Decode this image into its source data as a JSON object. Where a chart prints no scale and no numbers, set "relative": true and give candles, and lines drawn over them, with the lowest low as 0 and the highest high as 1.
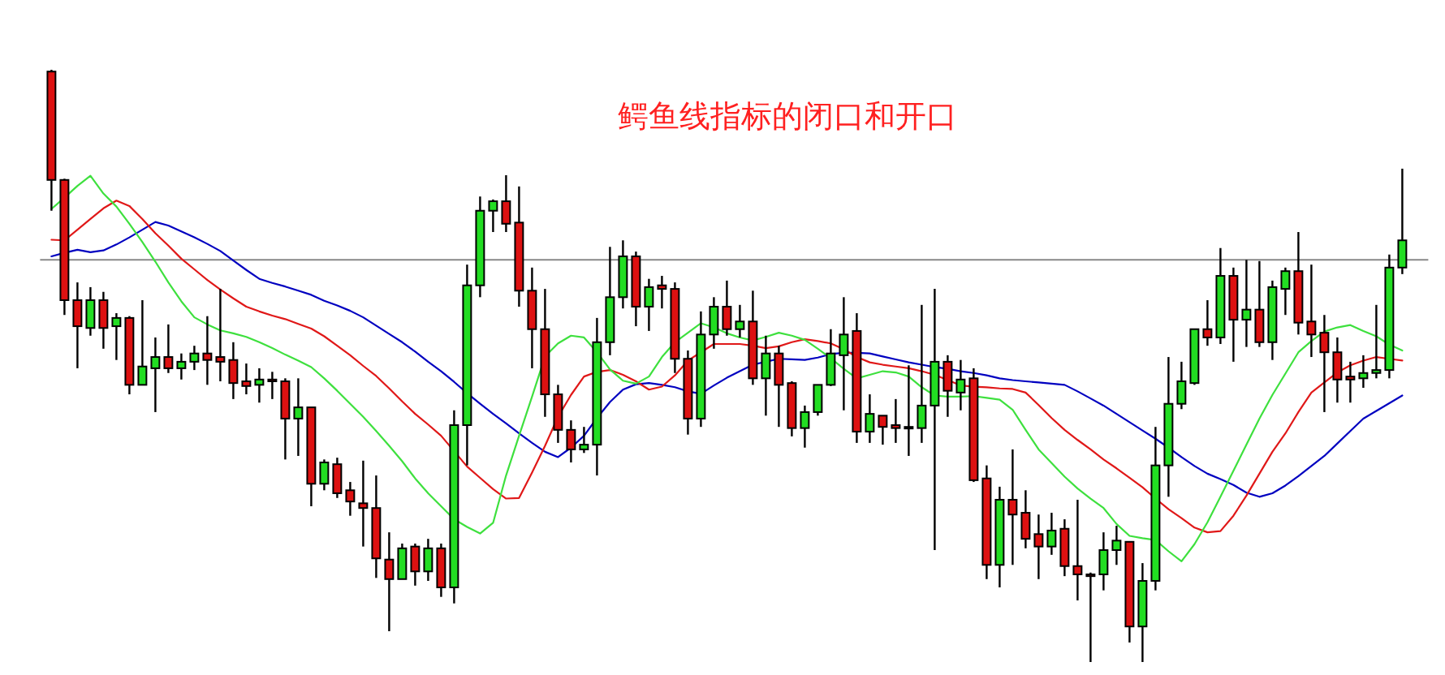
{
  "chart_data": {
    "type": "candlestick",
    "title": "鳄鱼线指标的闭口和开口",
    "relative": true,
    "categories": [
      null,
      null,
      null,
      null,
      null,
      null,
      null,
      null,
      null,
      null,
      null,
      null,
      null,
      null,
      null,
      null,
      null,
      null,
      null,
      null,
      null,
      null,
      null,
      null,
      null,
      null,
      null,
      null,
      null,
      null,
      null,
      null,
      null,
      null,
      null,
      null,
      null,
      null,
      null,
      null,
      null,
      null,
      null,
      null,
      null,
      null,
      null,
      null,
      null,
      null,
      null,
      null,
      null,
      null,
      null,
      null,
      null,
      null,
      null,
      null,
      null,
      null,
      null,
      null,
      null,
      null,
      null,
      null,
      null,
      null,
      null,
      null,
      null,
      null,
      null,
      null,
      null,
      null,
      null,
      null,
      null,
      null,
      null,
      null,
      null,
      null,
      null,
      null,
      null,
      null,
      null,
      null,
      null,
      null,
      null,
      null,
      null,
      null,
      null,
      null,
      null,
      null,
      null,
      null,
      null
    ],
    "ohlc": [
      [
        0.997,
        1,
        0.762,
        0.814
      ],
      [
        0.814,
        0.816,
        0.586,
        0.611
      ],
      [
        0.611,
        0.641,
        0.496,
        0.567
      ],
      [
        0.564,
        0.633,
        0.551,
        0.611
      ],
      [
        0.611,
        0.625,
        0.529,
        0.564
      ],
      [
        0.567,
        0.589,
        0.51,
        0.581
      ],
      [
        0.581,
        0.584,
        0.452,
        0.468
      ],
      [
        0.468,
        0.611,
        0.468,
        0.499
      ],
      [
        0.496,
        0.548,
        0.422,
        0.515
      ],
      [
        0.515,
        0.57,
        0.488,
        0.496
      ],
      [
        0.496,
        0.521,
        0.477,
        0.507
      ],
      [
        0.507,
        0.534,
        0.493,
        0.521
      ],
      [
        0.521,
        0.584,
        0.468,
        0.51
      ],
      [
        0.515,
        0.63,
        0.474,
        0.507
      ],
      [
        0.51,
        0.54,
        0.444,
        0.471
      ],
      [
        0.474,
        0.504,
        0.452,
        0.466
      ],
      [
        0.468,
        0.496,
        0.438,
        0.477
      ],
      [
        0.477,
        0.49,
        0.444,
        0.474
      ],
      [
        0.474,
        0.479,
        0.342,
        0.411
      ],
      [
        0.411,
        0.479,
        0.348,
        0.43
      ],
      [
        0.43,
        0.43,
        0.263,
        0.301
      ],
      [
        0.301,
        0.342,
        0.29,
        0.337
      ],
      [
        0.334,
        0.345,
        0.277,
        0.285
      ],
      [
        0.29,
        0.304,
        0.247,
        0.271
      ],
      [
        0.268,
        0.34,
        0.195,
        0.26
      ],
      [
        0.26,
        0.315,
        0.142,
        0.175
      ],
      [
        0.173,
        0.219,
        0.052,
        0.14
      ],
      [
        0.14,
        0.2,
        0.14,
        0.192
      ],
      [
        0.195,
        0.2,
        0.129,
        0.153
      ],
      [
        0.153,
        0.208,
        0.137,
        0.192
      ],
      [
        0.192,
        0.2,
        0.11,
        0.126
      ],
      [
        0.126,
        0.425,
        0.099,
        0.4
      ],
      [
        0.4,
        0.671,
        0.332,
        0.636
      ],
      [
        0.636,
        0.786,
        0.616,
        0.762
      ],
      [
        0.762,
        0.781,
        0.726,
        0.778
      ],
      [
        0.778,
        0.822,
        0.726,
        0.74
      ],
      [
        0.742,
        0.803,
        0.6,
        0.627
      ],
      [
        0.627,
        0.666,
        0.496,
        0.562
      ],
      [
        0.562,
        0.63,
        0.414,
        0.452
      ],
      [
        0.452,
        0.468,
        0.37,
        0.392
      ],
      [
        0.392,
        0.408,
        0.337,
        0.359
      ],
      [
        0.359,
        0.397,
        0.353,
        0.367
      ],
      [
        0.367,
        0.581,
        0.315,
        0.54
      ],
      [
        0.54,
        0.701,
        0.518,
        0.616
      ],
      [
        0.616,
        0.712,
        0.597,
        0.685
      ],
      [
        0.685,
        0.693,
        0.567,
        0.6
      ],
      [
        0.6,
        0.647,
        0.559,
        0.633
      ],
      [
        0.636,
        0.652,
        0.597,
        0.63
      ],
      [
        0.63,
        0.641,
        0.488,
        0.512
      ],
      [
        0.512,
        0.526,
        0.384,
        0.411
      ],
      [
        0.411,
        0.592,
        0.397,
        0.553
      ],
      [
        0.553,
        0.616,
        0.529,
        0.6
      ],
      [
        0.6,
        0.644,
        0.551,
        0.562
      ],
      [
        0.562,
        0.603,
        0.548,
        0.575
      ],
      [
        0.575,
        0.627,
        0.468,
        0.479
      ],
      [
        0.479,
        0.551,
        0.416,
        0.521
      ],
      [
        0.521,
        0.534,
        0.397,
        0.468
      ],
      [
        0.471,
        0.474,
        0.381,
        0.395
      ],
      [
        0.395,
        0.433,
        0.362,
        0.422
      ],
      [
        0.422,
        0.468,
        0.416,
        0.468
      ],
      [
        0.468,
        0.562,
        0.466,
        0.521
      ],
      [
        0.518,
        0.616,
        0.425,
        0.553
      ],
      [
        0.559,
        0.589,
        0.37,
        0.389
      ],
      [
        0.389,
        0.452,
        0.37,
        0.419
      ],
      [
        0.416,
        0.416,
        0.367,
        0.397
      ],
      [
        0.4,
        0.444,
        0.37,
        0.395
      ],
      [
        0.397,
        0.501,
        0.348,
        0.395
      ],
      [
        0.395,
        0.603,
        0.37,
        0.433
      ],
      [
        0.433,
        0.63,
        0.189,
        0.507
      ],
      [
        0.507,
        0.518,
        0.414,
        0.458
      ],
      [
        0.455,
        0.51,
        0.425,
        0.477
      ],
      [
        0.479,
        0.496,
        0.304,
        0.307
      ],
      [
        0.31,
        0.332,
        0.14,
        0.164
      ],
      [
        0.164,
        0.296,
        0.126,
        0.274
      ],
      [
        0.274,
        0.359,
        0.164,
        0.249
      ],
      [
        0.252,
        0.29,
        0.192,
        0.208
      ],
      [
        0.216,
        0.249,
        0.14,
        0.195
      ],
      [
        0.195,
        0.252,
        0.181,
        0.222
      ],
      [
        0.225,
        0.241,
        0.145,
        0.162
      ],
      [
        0.162,
        0.274,
        0.104,
        0.148
      ],
      [
        0.148,
        0.151,
        0,
        0.145
      ],
      [
        0.148,
        0.219,
        0.121,
        0.189
      ],
      [
        0.189,
        0.23,
        0.164,
        0.205
      ],
      [
        0.203,
        0.203,
        0.033,
        0.06
      ],
      [
        0.06,
        0.167,
        0,
        0.137
      ],
      [
        0.137,
        0.397,
        0.121,
        0.332
      ],
      [
        0.332,
        0.515,
        0.279,
        0.436
      ],
      [
        0.436,
        0.507,
        0.427,
        0.474
      ],
      [
        0.471,
        0.562,
        0.468,
        0.562
      ],
      [
        0.562,
        0.611,
        0.534,
        0.548
      ],
      [
        0.548,
        0.699,
        0.537,
        0.652
      ],
      [
        0.652,
        0.666,
        0.507,
        0.578
      ],
      [
        0.578,
        0.679,
        0.532,
        0.595
      ],
      [
        0.595,
        0.677,
        0.532,
        0.54
      ],
      [
        0.54,
        0.644,
        0.51,
        0.633
      ],
      [
        0.63,
        0.666,
        0.586,
        0.66
      ],
      [
        0.66,
        0.726,
        0.553,
        0.573
      ],
      [
        0.575,
        0.671,
        0.515,
        0.553
      ],
      [
        0.556,
        0.586,
        0.422,
        0.523
      ],
      [
        0.523,
        0.548,
        0.438,
        0.477
      ],
      [
        0.482,
        0.507,
        0.438,
        0.477
      ],
      [
        0.479,
        0.518,
        0.463,
        0.488
      ],
      [
        0.488,
        0.603,
        0.479,
        0.493
      ],
      [
        0.493,
        0.688,
        0.479,
        0.666
      ],
      [
        0.666,
        0.833,
        0.655,
        0.712
      ]
    ],
    "series": [
      {
        "type": "line",
        "color": "#0000c0",
        "values": [
          0.685,
          0.691,
          0.696,
          0.692,
          0.695,
          0.705,
          0.717,
          0.73,
          0.743,
          0.737,
          0.727,
          0.717,
          0.706,
          0.694,
          0.678,
          0.662,
          0.647,
          0.64,
          0.634,
          0.627,
          0.62,
          0.61,
          0.602,
          0.593,
          0.582,
          0.568,
          0.554,
          0.54,
          0.524,
          0.507,
          0.491,
          0.473,
          0.454,
          0.436,
          0.419,
          0.403,
          0.386,
          0.37,
          0.355,
          0.346,
          0.362,
          0.382,
          0.412,
          0.439,
          0.46,
          0.469,
          0.471,
          0.468,
          0.464,
          0.457,
          0.453,
          0.467,
          0.48,
          0.491,
          0.502,
          0.507,
          0.512,
          0.511,
          0.51,
          0.514,
          0.52,
          0.522,
          0.522,
          0.521,
          0.516,
          0.511,
          0.506,
          0.502,
          0.498,
          0.495,
          0.491,
          0.488,
          0.484,
          0.479,
          0.476,
          0.474,
          0.472,
          0.47,
          0.468,
          0.457,
          0.445,
          0.433,
          0.419,
          0.405,
          0.391,
          0.377,
          0.362,
          0.346,
          0.331,
          0.318,
          0.309,
          0.299,
          0.286,
          0.279,
          0.285,
          0.298,
          0.314,
          0.331,
          0.348,
          0.369,
          0.39,
          0.411,
          0.424,
          0.437,
          0.45
        ]
      },
      {
        "type": "line",
        "color": "#e01818",
        "values": [
          0.713,
          0.712,
          0.73,
          0.748,
          0.766,
          0.779,
          0.77,
          0.748,
          0.724,
          0.703,
          0.681,
          0.663,
          0.645,
          0.629,
          0.614,
          0.6,
          0.592,
          0.585,
          0.579,
          0.571,
          0.563,
          0.55,
          0.534,
          0.518,
          0.5,
          0.483,
          0.462,
          0.44,
          0.419,
          0.401,
          0.382,
          0.356,
          0.33,
          0.311,
          0.292,
          0.276,
          0.277,
          0.32,
          0.365,
          0.414,
          0.451,
          0.482,
          0.49,
          0.493,
          0.485,
          0.474,
          0.46,
          0.465,
          0.484,
          0.509,
          0.523,
          0.537,
          0.537,
          0.537,
          0.534,
          0.53,
          0.533,
          0.54,
          0.545,
          0.542,
          0.538,
          0.528,
          0.515,
          0.506,
          0.502,
          0.499,
          0.496,
          0.491,
          0.485,
          0.476,
          0.467,
          0.465,
          0.464,
          0.462,
          0.461,
          0.455,
          0.434,
          0.412,
          0.392,
          0.375,
          0.359,
          0.342,
          0.327,
          0.311,
          0.295,
          0.276,
          0.258,
          0.243,
          0.227,
          0.219,
          0.221,
          0.247,
          0.281,
          0.318,
          0.355,
          0.386,
          0.422,
          0.455,
          0.472,
          0.489,
          0.501,
          0.509,
          0.515,
          0.512,
          0.509
        ]
      },
      {
        "type": "line",
        "color": "#3ee03e",
        "values": [
          0.765,
          0.784,
          0.804,
          0.821,
          0.791,
          0.769,
          0.74,
          0.709,
          0.676,
          0.641,
          0.609,
          0.582,
          0.57,
          0.56,
          0.555,
          0.549,
          0.54,
          0.53,
          0.519,
          0.509,
          0.498,
          0.479,
          0.458,
          0.436,
          0.414,
          0.39,
          0.365,
          0.339,
          0.31,
          0.285,
          0.263,
          0.241,
          0.228,
          0.217,
          0.235,
          0.315,
          0.382,
          0.448,
          0.516,
          0.538,
          0.551,
          0.548,
          0.523,
          0.494,
          0.475,
          0.47,
          0.482,
          0.515,
          0.54,
          0.556,
          0.572,
          0.565,
          0.555,
          0.548,
          0.543,
          0.549,
          0.556,
          0.551,
          0.544,
          0.529,
          0.513,
          0.495,
          0.479,
          0.485,
          0.491,
          0.489,
          0.482,
          0.464,
          0.45,
          0.448,
          0.448,
          0.449,
          0.446,
          0.443,
          0.426,
          0.392,
          0.359,
          0.336,
          0.313,
          0.293,
          0.276,
          0.26,
          0.233,
          0.213,
          0.209,
          0.206,
          0.187,
          0.17,
          0.199,
          0.236,
          0.279,
          0.323,
          0.367,
          0.411,
          0.451,
          0.487,
          0.523,
          0.542,
          0.558,
          0.565,
          0.569,
          0.559,
          0.55,
          0.536,
          0.526
        ]
      }
    ],
    "ref_lines": [
      {
        "axis": "y",
        "value": 0.679,
        "color": "#888888"
      }
    ]
  }
}
